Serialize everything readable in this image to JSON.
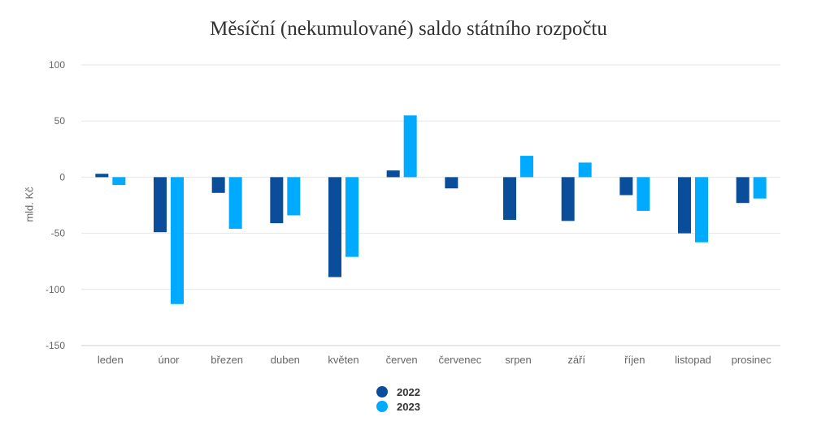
{
  "chart_data": {
    "type": "bar",
    "title": "Měsíční (nekumulované) saldo státního rozpočtu",
    "ylabel": "mld. Kč",
    "xlabel": "",
    "ylim": [
      -150,
      100
    ],
    "yticks": [
      100,
      50,
      0,
      -50,
      -100,
      -150
    ],
    "grid": true,
    "legend_position": "bottom",
    "categories": [
      "leden",
      "únor",
      "březen",
      "duben",
      "květen",
      "červen",
      "červenec",
      "srpen",
      "září",
      "říjen",
      "listopad",
      "prosinec"
    ],
    "series": [
      {
        "name": "2022",
        "color": "#0a4d9a",
        "values": [
          3,
          -49,
          -14,
          -41,
          -89,
          6,
          -10,
          -38,
          -39,
          -16,
          -50,
          -23
        ]
      },
      {
        "name": "2023",
        "color": "#00aaff",
        "values": [
          -7,
          -113,
          -46,
          -34,
          -71,
          55,
          0,
          19,
          13,
          -30,
          -58,
          -19
        ]
      }
    ]
  }
}
